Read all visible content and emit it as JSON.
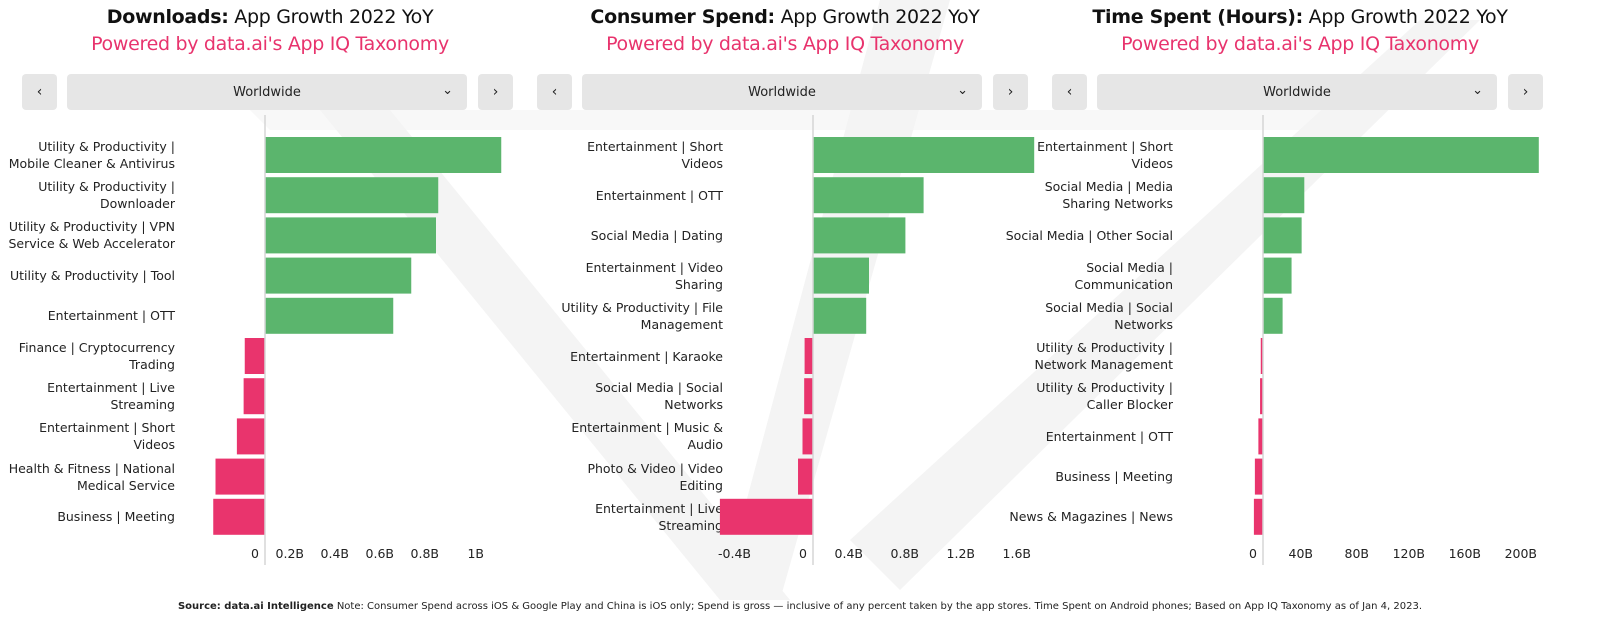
{
  "colors": {
    "positive": "#5bb56d",
    "negative": "#e9346d",
    "subtitle": "#e8336d",
    "control_bg": "#e6e6e6"
  },
  "icons": {
    "prev": "chevron-left-icon",
    "next": "chevron-right-icon",
    "dropdown": "chevron-down-icon"
  },
  "panels": [
    {
      "title_bold": "Downloads:",
      "title_rest": " App Growth 2022 YoY",
      "subtitle": "Powered by data.ai's App IQ Taxonomy",
      "region": "Worldwide",
      "prev": "‹",
      "next": "›",
      "chev": "⌄"
    },
    {
      "title_bold": "Consumer Spend:",
      "title_rest": " App Growth 2022 YoY",
      "subtitle": "Powered by data.ai's App IQ Taxonomy",
      "region": "Worldwide",
      "prev": "‹",
      "next": "›",
      "chev": "⌄"
    },
    {
      "title_bold": "Time Spent (Hours):",
      "title_rest": " App Growth 2022 YoY",
      "subtitle": "Powered by data.ai's App IQ Taxonomy",
      "region": "Worldwide",
      "prev": "‹",
      "next": "›",
      "chev": "⌄"
    }
  ],
  "chart_data": [
    {
      "type": "bar",
      "orientation": "horizontal",
      "title": "Downloads: App Growth 2022 YoY",
      "categories": [
        "Utility & Productivity | Mobile Cleaner & Antivirus",
        "Utility & Productivity | Downloader",
        "Utility & Productivity | VPN Service & Web Accelerator",
        "Utility & Productivity | Tool",
        "Entertainment | OTT",
        "Finance | Cryptocurrency Trading",
        "Entertainment | Live Streaming",
        "Entertainment | Short Videos",
        "Health & Fitness | National Medical Service",
        "Business | Meeting"
      ],
      "values": [
        1.05,
        0.77,
        0.76,
        0.65,
        0.57,
        -0.09,
        -0.095,
        -0.125,
        -0.22,
        -0.23
      ],
      "unit": "B",
      "xticks": [
        0,
        0.2,
        0.4,
        0.6,
        0.8,
        1
      ],
      "xtick_labels": [
        "0",
        "0.2B",
        "0.4B",
        "0.6B",
        "0.8B",
        "1B"
      ],
      "xlim": [
        -0.25,
        1.1
      ],
      "grid": false
    },
    {
      "type": "bar",
      "orientation": "horizontal",
      "title": "Consumer Spend: App Growth 2022 YoY",
      "categories": [
        "Entertainment | Short Videos",
        "Entertainment | OTT",
        "Social Media | Dating",
        "Entertainment | Video Sharing",
        "Utility & Productivity | File Management",
        "Entertainment | Karaoke",
        "Social Media | Social Networks",
        "Entertainment | Music & Audio",
        "Photo & Video | Video Editing",
        "Entertainment | Live Streaming"
      ],
      "values": [
        1.58,
        0.79,
        0.66,
        0.4,
        0.38,
        -0.06,
        -0.063,
        -0.075,
        -0.107,
        -0.665
      ],
      "unit": "B",
      "xticks": [
        -0.4,
        0,
        0.4,
        0.8,
        1.2,
        1.6
      ],
      "xtick_labels": [
        "-0.4B",
        "0",
        "0.4B",
        "0.8B",
        "1.2B",
        "1.6B"
      ],
      "xlim": [
        -0.7,
        1.65
      ],
      "grid": false
    },
    {
      "type": "bar",
      "orientation": "horizontal",
      "title": "Time Spent (Hours): App Growth 2022 YoY",
      "categories": [
        "Entertainment | Short Videos",
        "Social Media | Media Sharing Networks",
        "Social Media | Other Social",
        "Social Media | Communication",
        "Social Media | Social Networks",
        "Utility & Productivity | Network Management",
        "Utility & Productivity | Caller Blocker",
        "Entertainment | OTT",
        "Business | Meeting",
        "News & Magazines | News"
      ],
      "values": [
        197,
        29.5,
        27.6,
        20.4,
        14,
        -1.6,
        -2.1,
        -3.3,
        -5.8,
        -6.5
      ],
      "unit": "B",
      "xticks": [
        0,
        40,
        80,
        120,
        160,
        200
      ],
      "xtick_labels": [
        "0",
        "40B",
        "80B",
        "120B",
        "160B",
        "200B"
      ],
      "xlim": [
        -7,
        200
      ],
      "grid": false
    }
  ],
  "footer": {
    "source_label": "Source: data.ai Intelligence",
    "note": " Note: Consumer Spend across iOS & Google Play and China is iOS only; Spend is gross — inclusive of any percent taken by the app stores. Time Spent on Android phones; Based on App IQ Taxonomy as of Jan 4, 2023."
  }
}
